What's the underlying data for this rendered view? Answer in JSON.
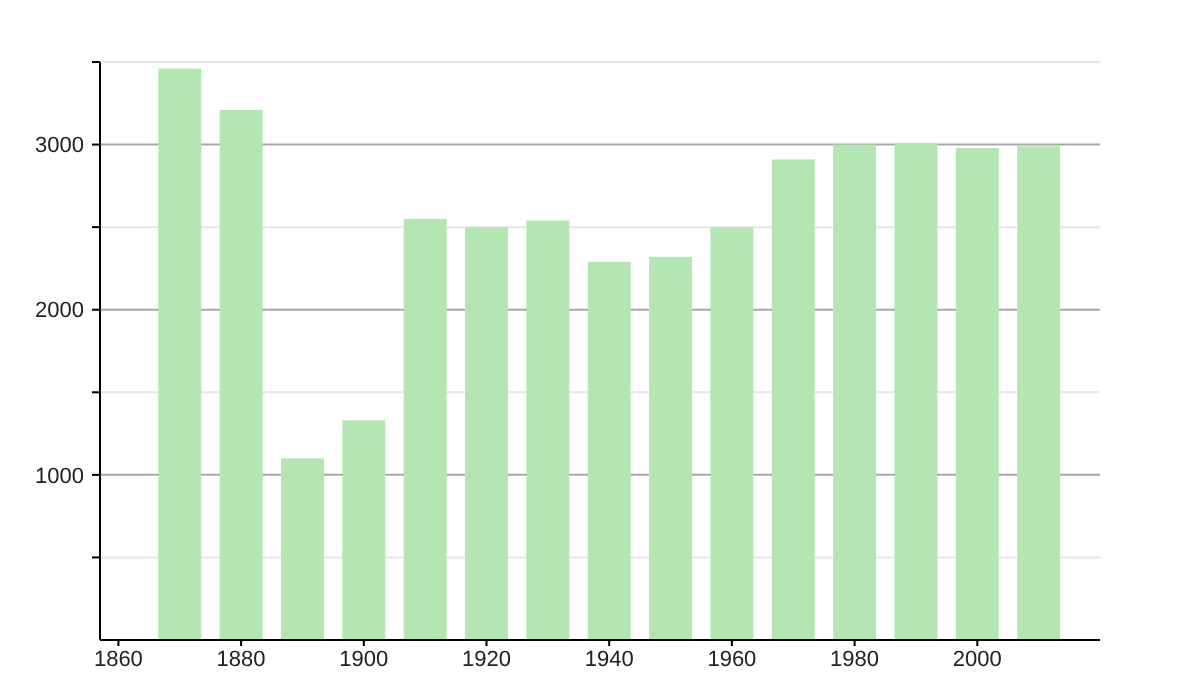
{
  "chart_data": {
    "type": "bar",
    "x": [
      1870,
      1880,
      1890,
      1900,
      1910,
      1920,
      1930,
      1940,
      1950,
      1960,
      1970,
      1980,
      1990,
      2000,
      2010
    ],
    "values": [
      3460,
      3210,
      1100,
      1330,
      2550,
      2500,
      2540,
      2290,
      2320,
      2500,
      2910,
      3000,
      3010,
      2980,
      2990
    ],
    "color": "#b3e6b3",
    "xlim": [
      1857,
      2020
    ],
    "xticks": [
      1860,
      1880,
      1900,
      1920,
      1940,
      1960,
      1980,
      2000
    ],
    "ylim": [
      0,
      3500
    ],
    "yticks": [
      {
        "value": 500,
        "label": null
      },
      1000,
      {
        "value": 1500,
        "label": null
      },
      2000,
      {
        "value": 2500,
        "label": null
      },
      3000,
      {
        "value": 3500,
        "label": null
      }
    ],
    "grid": true
  }
}
